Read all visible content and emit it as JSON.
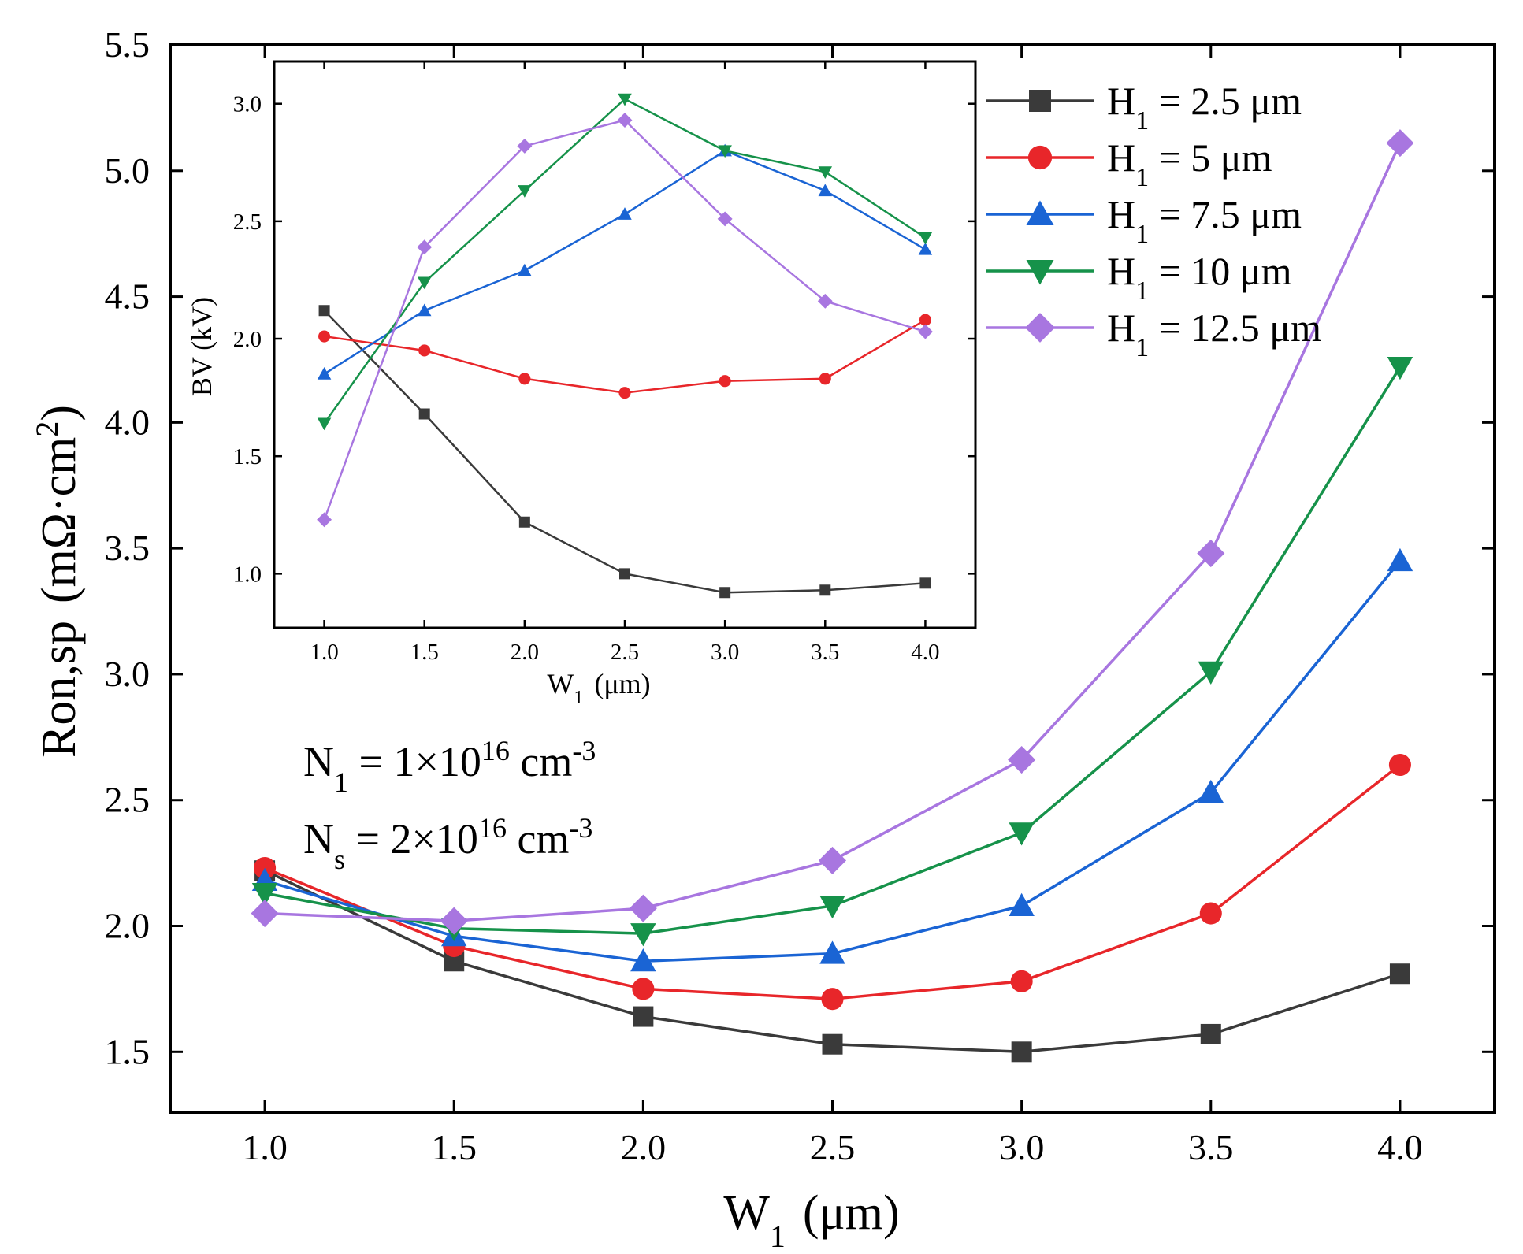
{
  "chart_data": [
    {
      "type": "line",
      "role": "main",
      "x": [
        1.0,
        1.5,
        2.0,
        2.5,
        3.0,
        3.5,
        4.0
      ],
      "xlabel": {
        "main": "W",
        "sub": "1",
        "unit": "(μm)"
      },
      "ylabel": {
        "main": "Ron,sp",
        "unit_prefix": "(mΩ·cm",
        "sup": "2",
        "unit_suffix": ")"
      },
      "xlim": [
        0.75,
        4.25
      ],
      "ylim": [
        1.26,
        5.5
      ],
      "xticks": [
        "1.0",
        "1.5",
        "2.0",
        "2.5",
        "3.0",
        "3.5",
        "4.0"
      ],
      "yticks": [
        "1.5",
        "2.0",
        "2.5",
        "3.0",
        "3.5",
        "4.0",
        "4.5",
        "5.0",
        "5.5"
      ],
      "series": [
        {
          "name": "H1 = 2.5 μm",
          "legend_main": "H",
          "legend_sub": "1",
          "legend_rest": " = 2.5 μm",
          "color": "#3a3a3a",
          "marker": "square",
          "values": [
            2.22,
            1.86,
            1.64,
            1.53,
            1.5,
            1.57,
            1.81
          ]
        },
        {
          "name": "H1 = 5 μm",
          "legend_main": "H",
          "legend_sub": "1",
          "legend_rest": " = 5 μm",
          "color": "#e8262a",
          "marker": "circle",
          "values": [
            2.23,
            1.92,
            1.75,
            1.71,
            1.78,
            2.05,
            2.64
          ]
        },
        {
          "name": "H1 = 7.5 μm",
          "legend_main": "H",
          "legend_sub": "1",
          "legend_rest": " = 7.5 μm",
          "color": "#1a64d4",
          "marker": "triangle-up",
          "values": [
            2.18,
            1.96,
            1.86,
            1.89,
            2.08,
            2.53,
            3.45
          ]
        },
        {
          "name": "H1 = 10 μm",
          "legend_main": "H",
          "legend_sub": "1",
          "legend_rest": " = 10 μm",
          "color": "#16924a",
          "marker": "triangle-down",
          "values": [
            2.13,
            1.99,
            1.97,
            2.08,
            2.37,
            3.01,
            4.22
          ]
        },
        {
          "name": "H1 = 12.5 μm",
          "legend_main": "H",
          "legend_sub": "1",
          "legend_rest": " = 12.5 μm",
          "color": "#a876e0",
          "marker": "diamond",
          "values": [
            2.05,
            2.02,
            2.07,
            2.26,
            2.66,
            3.48,
            5.11
          ]
        }
      ],
      "legend_position": "top-right",
      "annotations": [
        {
          "main": "N",
          "sub": "1",
          "mid": " = 1×10",
          "sup": "16",
          "unit": " cm",
          "unit_sup": "-3"
        },
        {
          "main": "N",
          "sub": "s",
          "mid": " = 2×10",
          "sup": "16",
          "unit": " cm",
          "unit_sup": "-3"
        }
      ]
    },
    {
      "type": "line",
      "role": "inset",
      "x": [
        1.0,
        1.5,
        2.0,
        2.5,
        3.0,
        3.5,
        4.0
      ],
      "xlabel": {
        "main": "W",
        "sub": "1",
        "unit": "(μm)"
      },
      "ylabel": "BV  (kV)",
      "xlim": [
        0.75,
        4.25
      ],
      "ylim": [
        0.77,
        3.18
      ],
      "xticks": [
        "1.0",
        "1.5",
        "2.0",
        "2.5",
        "3.0",
        "3.5",
        "4.0"
      ],
      "yticks": [
        "1.0",
        "1.5",
        "2.0",
        "2.5",
        "3.0"
      ],
      "series": [
        {
          "name": "H1 = 2.5 μm",
          "color": "#3a3a3a",
          "marker": "square",
          "values": [
            2.12,
            1.68,
            1.22,
            1.0,
            0.92,
            0.93,
            0.96
          ]
        },
        {
          "name": "H1 = 5 μm",
          "color": "#e8262a",
          "marker": "circle",
          "values": [
            2.01,
            1.95,
            1.83,
            1.77,
            1.82,
            1.83,
            2.08
          ]
        },
        {
          "name": "H1 = 7.5 μm",
          "color": "#1a64d4",
          "marker": "triangle-up",
          "values": [
            1.85,
            2.12,
            2.29,
            2.53,
            2.8,
            2.63,
            2.38
          ]
        },
        {
          "name": "H1 = 10 μm",
          "color": "#16924a",
          "marker": "triangle-down",
          "values": [
            1.64,
            2.24,
            2.63,
            3.02,
            2.8,
            2.71,
            2.43
          ]
        },
        {
          "name": "H1 = 12.5 μm",
          "color": "#a876e0",
          "marker": "diamond",
          "values": [
            1.23,
            2.39,
            2.82,
            2.93,
            2.51,
            2.16,
            2.03
          ]
        }
      ]
    }
  ]
}
